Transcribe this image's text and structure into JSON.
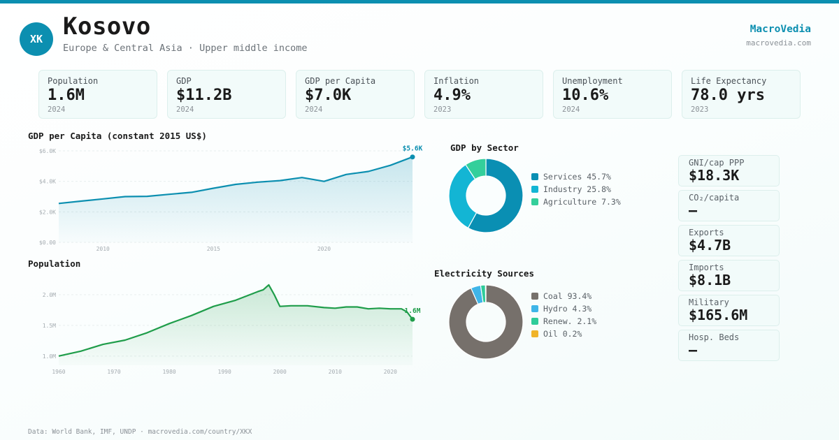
{
  "header": {
    "badge": "XK",
    "title": "Kosovo",
    "subtitle": "Europe & Central Asia · Upper middle income",
    "brand": "MacroVedia",
    "brand_url": "macrovedia.com"
  },
  "colors": {
    "accent": "#0c8fb0",
    "green": "#1f9d4a",
    "services": "#0a8fb3",
    "industry": "#13b5d4",
    "agriculture": "#34cf9b",
    "coal": "#76706b",
    "hydro": "#3fb5e8",
    "renew": "#2ecc9a",
    "oil": "#f0b429"
  },
  "kpis": [
    {
      "label": "Population",
      "value": "1.6M",
      "year": "2024"
    },
    {
      "label": "GDP",
      "value": "$11.2B",
      "year": "2024"
    },
    {
      "label": "GDP per Capita",
      "value": "$7.0K",
      "year": "2024"
    },
    {
      "label": "Inflation",
      "value": "4.9%",
      "year": "2023"
    },
    {
      "label": "Unemployment",
      "value": "10.6%",
      "year": "2024"
    },
    {
      "label": "Life Expectancy",
      "value": "78.0 yrs",
      "year": "2023"
    }
  ],
  "side_stats": [
    {
      "label": "GNI/cap PPP",
      "value": "$18.3K"
    },
    {
      "label": "CO₂/capita",
      "value": "—"
    },
    {
      "label": "Exports",
      "value": "$4.7B"
    },
    {
      "label": "Imports",
      "value": "$8.1B"
    },
    {
      "label": "Military",
      "value": "$165.6M"
    },
    {
      "label": "Hosp. Beds",
      "value": "—"
    }
  ],
  "footer": "Data: World Bank, IMF, UNDP · macrovedia.com/country/XKX",
  "chart_data": [
    {
      "id": "gdp",
      "type": "area",
      "title": "GDP per Capita (constant 2015 US$)",
      "x": [
        2008,
        2009,
        2010,
        2011,
        2012,
        2013,
        2014,
        2015,
        2016,
        2017,
        2018,
        2019,
        2020,
        2021,
        2022,
        2023,
        2024
      ],
      "y": [
        2550,
        2700,
        2850,
        3000,
        3020,
        3150,
        3280,
        3550,
        3800,
        3950,
        4050,
        4250,
        4000,
        4450,
        4650,
        5050,
        5600
      ],
      "ylim": [
        0,
        6000
      ],
      "yticks": [
        0,
        2000,
        4000,
        6000
      ],
      "ytick_labels": [
        "$0.00",
        "$2.0K",
        "$4.0K",
        "$6.0K"
      ],
      "xticks": [
        2010,
        2015,
        2020
      ],
      "last_label": "$5.6K"
    },
    {
      "id": "pop",
      "type": "area",
      "title": "Population",
      "x": [
        1960,
        1964,
        1968,
        1972,
        1976,
        1980,
        1984,
        1988,
        1992,
        1996,
        1997,
        1998,
        1999,
        2000,
        2002,
        2005,
        2008,
        2010,
        2012,
        2014,
        2016,
        2018,
        2020,
        2022,
        2023,
        2024
      ],
      "y": [
        1.0,
        1.08,
        1.19,
        1.26,
        1.38,
        1.53,
        1.66,
        1.81,
        1.91,
        2.05,
        2.08,
        2.16,
        2.0,
        1.81,
        1.82,
        1.82,
        1.79,
        1.78,
        1.8,
        1.8,
        1.77,
        1.78,
        1.77,
        1.77,
        1.72,
        1.6
      ],
      "ylim": [
        0.85,
        2.25
      ],
      "yticks": [
        1.0,
        1.5,
        2.0
      ],
      "ytick_labels": [
        "1.0M",
        "1.5M",
        "2.0M"
      ],
      "xticks": [
        1960,
        1970,
        1980,
        1990,
        2000,
        2010,
        2020
      ],
      "last_label": "1.6M"
    },
    {
      "id": "sector",
      "type": "pie",
      "title": "GDP by Sector",
      "labels": [
        "Services",
        "Industry",
        "Agriculture"
      ],
      "values": [
        45.7,
        25.8,
        7.3
      ],
      "legend": [
        "Services 45.7%",
        "Industry 25.8%",
        "Agriculture 7.3%"
      ]
    },
    {
      "id": "elec",
      "type": "pie",
      "title": "Electricity Sources",
      "labels": [
        "Coal",
        "Hydro",
        "Renew.",
        "Oil"
      ],
      "values": [
        93.4,
        4.3,
        2.1,
        0.2
      ],
      "legend": [
        "Coal 93.4%",
        "Hydro 4.3%",
        "Renew. 2.1%",
        "Oil 0.2%"
      ]
    }
  ]
}
